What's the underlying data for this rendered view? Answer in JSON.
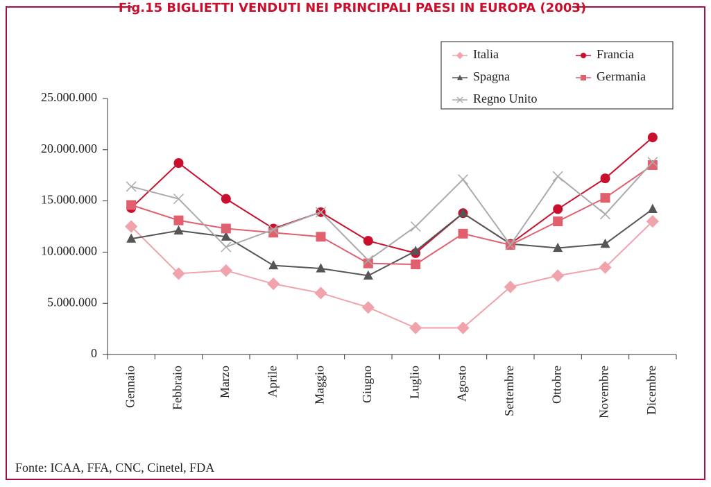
{
  "chart_data": {
    "type": "line",
    "title": "Fig.15 BIGLIETTI VENDUTI NEI PRINCIPALI PAESI IN EUROPA (2003)",
    "source": "Fonte: ICAA, FFA, CNC, Cinetel, FDA",
    "categories": [
      "Gennaio",
      "Febbraio",
      "Marzo",
      "Aprile",
      "Maggio",
      "Giugno",
      "Luglio",
      "Agosto",
      "Settembre",
      "Ottobre",
      "Novembre",
      "Dicembre"
    ],
    "series": [
      {
        "name": "Italia",
        "color": "#f0a3ab",
        "marker": "diamond",
        "values": [
          12500000,
          7900000,
          8200000,
          6900000,
          6000000,
          4600000,
          2600000,
          2600000,
          6600000,
          7700000,
          8500000,
          13000000
        ]
      },
      {
        "name": "Francia",
        "color": "#c8102e",
        "marker": "circle",
        "values": [
          14300000,
          18700000,
          15200000,
          12300000,
          13900000,
          11100000,
          9900000,
          13800000,
          10800000,
          14200000,
          17200000,
          21200000
        ]
      },
      {
        "name": "Spagna",
        "color": "#555555",
        "marker": "triangle",
        "values": [
          11300000,
          12100000,
          11500000,
          8700000,
          8400000,
          7700000,
          10100000,
          13800000,
          10800000,
          10400000,
          10800000,
          14200000
        ]
      },
      {
        "name": "Germania",
        "color": "#e0606e",
        "marker": "square",
        "values": [
          14600000,
          13100000,
          12300000,
          11900000,
          11500000,
          8900000,
          8800000,
          11800000,
          10700000,
          13000000,
          15300000,
          18500000
        ]
      },
      {
        "name": "Regno Unito",
        "color": "#aaaaaa",
        "marker": "x",
        "values": [
          16400000,
          15200000,
          10500000,
          12200000,
          13900000,
          9200000,
          12500000,
          17100000,
          10700000,
          17400000,
          13700000,
          18800000
        ]
      }
    ],
    "ylim": [
      0,
      25000000
    ],
    "yticks": [
      0,
      {
        "value": 5000000,
        "label": "5.000.000"
      },
      {
        "value": 10000000,
        "label": "10.000.000"
      },
      {
        "value": 15000000,
        "label": "15.000.000"
      },
      {
        "value": 20000000,
        "label": "20.000.000"
      },
      {
        "value": 25000000,
        "label": "25.000.000"
      }
    ],
    "legend": "top-right"
  }
}
